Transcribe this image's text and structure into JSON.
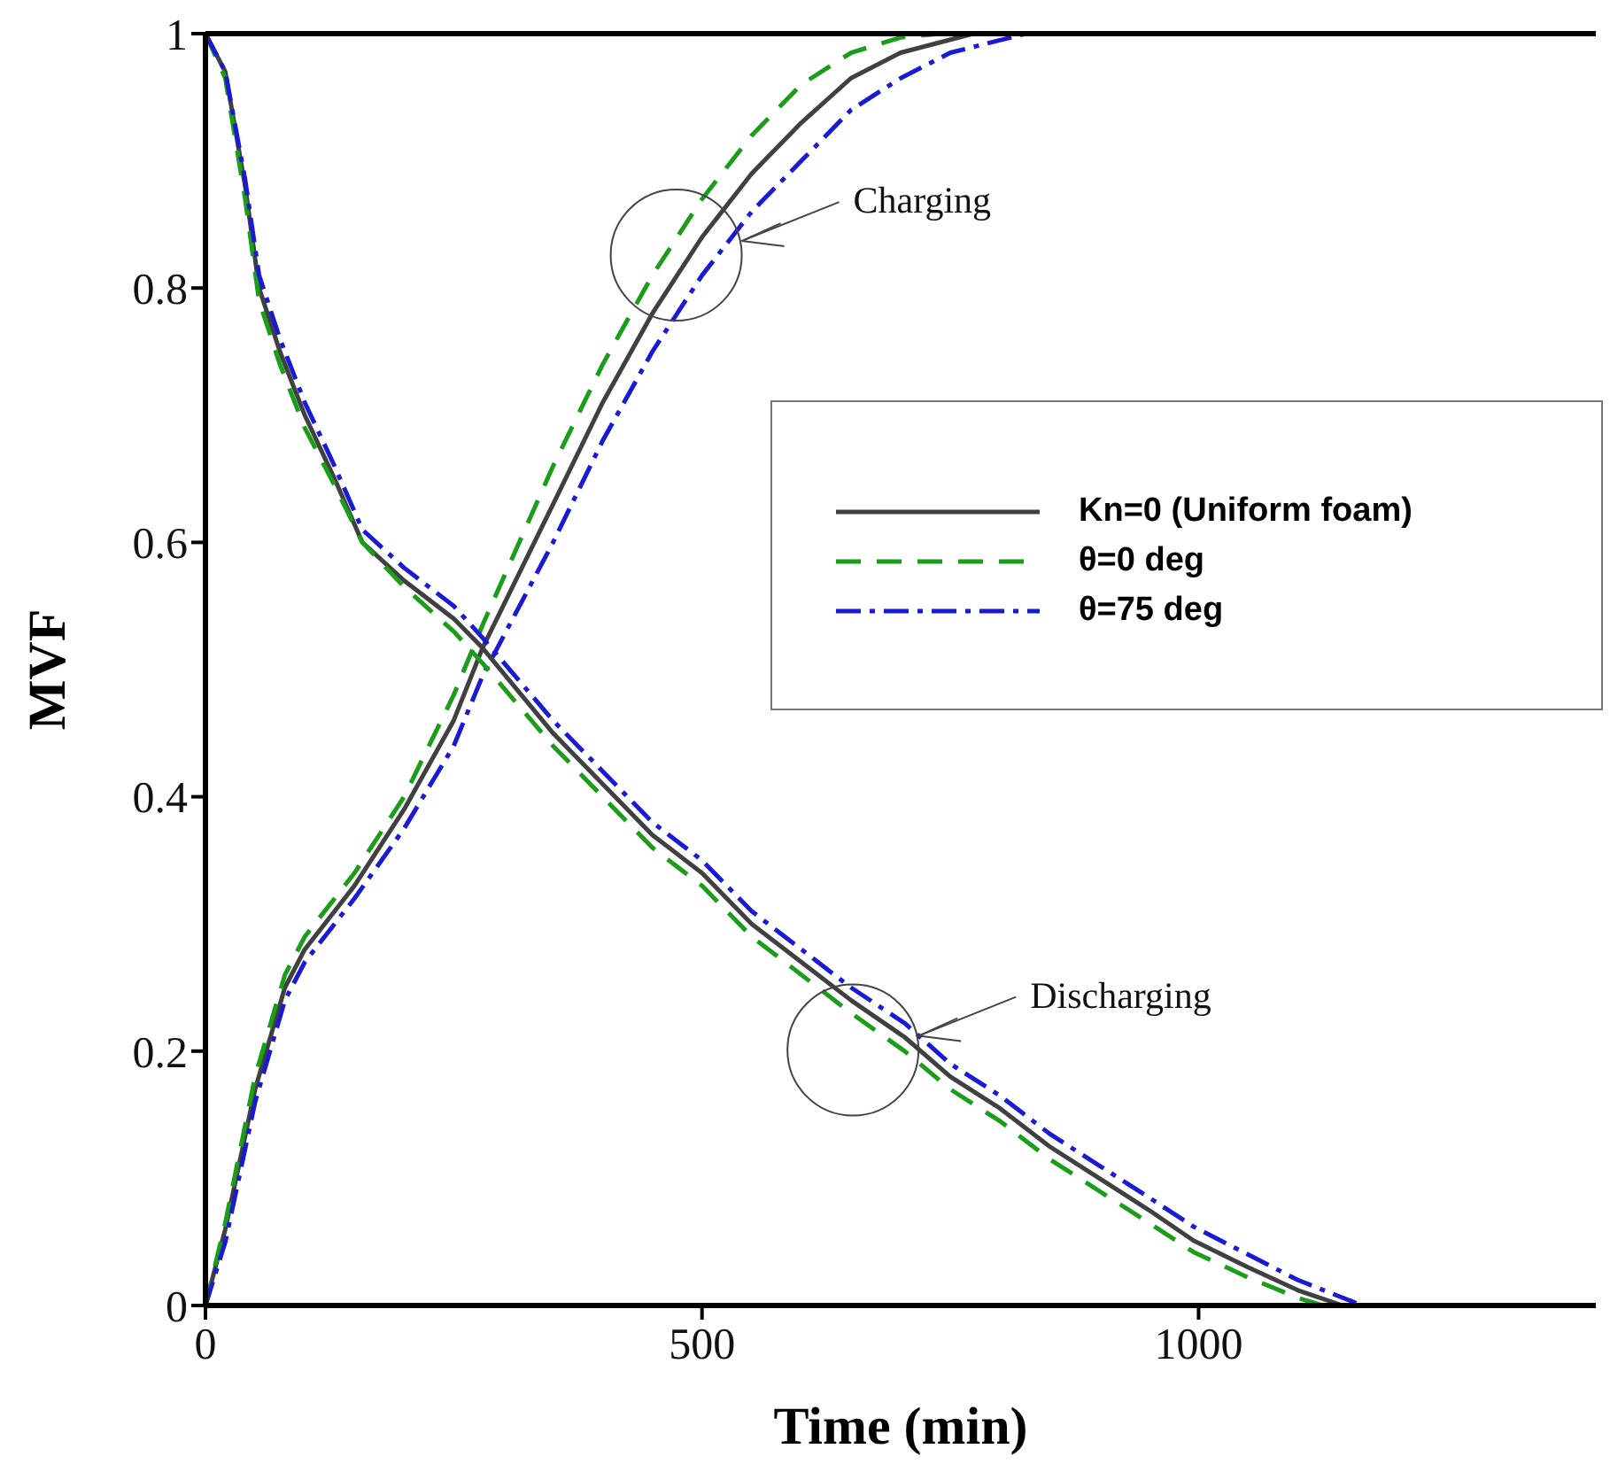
{
  "chart_data": {
    "type": "line",
    "xlabel": "Time (min)",
    "ylabel": "MVF",
    "xlim": [
      0,
      1400
    ],
    "xticks": [
      0,
      500,
      1000
    ],
    "ylim": [
      0,
      1
    ],
    "yticks": [
      0,
      0.2,
      0.4,
      0.6,
      0.8,
      1
    ],
    "grid": false,
    "legend": "right",
    "marker": "none",
    "annotations": [
      {
        "text": "Charging",
        "x": 540,
        "y": 0.837
      },
      {
        "text": "Discharging",
        "x": 718,
        "y": 0.212
      }
    ],
    "series": [
      {
        "name": "Kn=0 (Uniform foam)",
        "color": "#404040",
        "line_style": "solid",
        "x": [
          0,
          20,
          50,
          80,
          100,
          150,
          200,
          250,
          279,
          350,
          400,
          450,
          500,
          550,
          600,
          650,
          700,
          773
        ],
        "values": [
          0,
          0.06,
          0.17,
          0.25,
          0.28,
          0.33,
          0.39,
          0.46,
          0.517,
          0.63,
          0.71,
          0.78,
          0.84,
          0.89,
          0.93,
          0.965,
          0.985,
          1
        ]
      },
      {
        "name": "θ=0 deg",
        "color": "#1a9e1a",
        "line_style": "dashed",
        "x": [
          0,
          20,
          50,
          80,
          100,
          150,
          200,
          250,
          279,
          350,
          400,
          450,
          500,
          550,
          600,
          650,
          700,
          740
        ],
        "values": [
          0,
          0.065,
          0.18,
          0.26,
          0.29,
          0.34,
          0.4,
          0.48,
          0.535,
          0.66,
          0.74,
          0.81,
          0.87,
          0.92,
          0.96,
          0.985,
          0.997,
          1
        ]
      },
      {
        "name": "θ=75 deg",
        "color": "#1a1ad6",
        "line_style": "dashdot",
        "x": [
          0,
          20,
          50,
          80,
          100,
          150,
          200,
          250,
          279,
          350,
          400,
          450,
          500,
          550,
          600,
          650,
          700,
          750,
          826
        ],
        "values": [
          0,
          0.05,
          0.16,
          0.24,
          0.27,
          0.32,
          0.375,
          0.44,
          0.495,
          0.6,
          0.68,
          0.75,
          0.81,
          0.86,
          0.9,
          0.94,
          0.965,
          0.985,
          1
        ]
      },
      {
        "color": "#404040",
        "line_style": "solid",
        "x": [
          0,
          20,
          40,
          54,
          75,
          100,
          130,
          158,
          200,
          250,
          279,
          350,
          400,
          450,
          500,
          550,
          600,
          650,
          704,
          750,
          800,
          850,
          900,
          950,
          995,
          1050,
          1100,
          1145
        ],
        "values": [
          1,
          0.97,
          0.88,
          0.8,
          0.75,
          0.7,
          0.65,
          0.6,
          0.57,
          0.54,
          0.517,
          0.45,
          0.41,
          0.37,
          0.34,
          0.3,
          0.27,
          0.24,
          0.211,
          0.18,
          0.155,
          0.125,
          0.1,
          0.075,
          0.051,
          0.03,
          0.012,
          0
        ]
      },
      {
        "color": "#1a9e1a",
        "line_style": "dashed",
        "x": [
          0,
          20,
          40,
          54,
          75,
          100,
          130,
          158,
          200,
          250,
          279,
          350,
          400,
          450,
          500,
          550,
          600,
          650,
          704,
          750,
          800,
          850,
          900,
          950,
          995,
          1050,
          1100,
          1125
        ],
        "values": [
          1,
          0.965,
          0.87,
          0.79,
          0.74,
          0.69,
          0.645,
          0.6,
          0.565,
          0.53,
          0.505,
          0.44,
          0.4,
          0.36,
          0.33,
          0.29,
          0.26,
          0.23,
          0.2,
          0.17,
          0.145,
          0.115,
          0.09,
          0.065,
          0.042,
          0.022,
          0.006,
          0
        ]
      },
      {
        "color": "#1a1ad6",
        "line_style": "dashdot",
        "x": [
          0,
          20,
          40,
          54,
          75,
          100,
          130,
          158,
          200,
          250,
          279,
          350,
          400,
          450,
          500,
          550,
          600,
          650,
          704,
          750,
          800,
          850,
          900,
          950,
          995,
          1050,
          1100,
          1165
        ],
        "values": [
          1,
          0.97,
          0.885,
          0.81,
          0.76,
          0.71,
          0.66,
          0.61,
          0.58,
          0.55,
          0.525,
          0.46,
          0.42,
          0.38,
          0.35,
          0.31,
          0.28,
          0.25,
          0.222,
          0.19,
          0.165,
          0.135,
          0.11,
          0.085,
          0.062,
          0.04,
          0.02,
          0
        ]
      }
    ]
  }
}
